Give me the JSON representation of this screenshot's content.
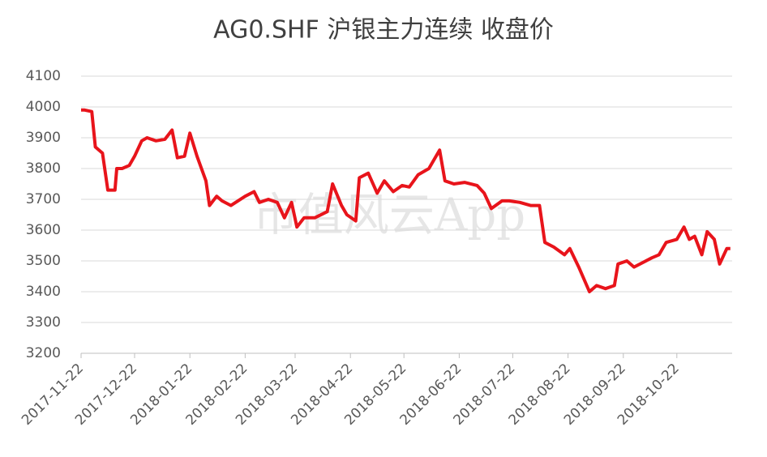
{
  "chart_data": {
    "type": "line",
    "title": "AG0.SHF 沪银主力连续 收盘价",
    "watermark": "市值风云App",
    "x": [
      "2017-11-22",
      "2017-11-24",
      "2017-11-28",
      "2017-11-30",
      "2017-12-04",
      "2017-12-07",
      "2017-12-11",
      "2017-12-12",
      "2017-12-15",
      "2017-12-19",
      "2017-12-22",
      "2017-12-26",
      "2017-12-29",
      "2018-01-03",
      "2018-01-08",
      "2018-01-12",
      "2018-01-15",
      "2018-01-19",
      "2018-01-22",
      "2018-01-26",
      "2018-01-31",
      "2018-02-02",
      "2018-02-06",
      "2018-02-09",
      "2018-02-14",
      "2018-02-22",
      "2018-02-27",
      "2018-03-02",
      "2018-03-07",
      "2018-03-12",
      "2018-03-16",
      "2018-03-20",
      "2018-03-23",
      "2018-03-27",
      "2018-04-02",
      "2018-04-09",
      "2018-04-12",
      "2018-04-17",
      "2018-04-20",
      "2018-04-25",
      "2018-04-27",
      "2018-05-02",
      "2018-05-07",
      "2018-05-11",
      "2018-05-16",
      "2018-05-21",
      "2018-05-25",
      "2018-05-30",
      "2018-06-05",
      "2018-06-11",
      "2018-06-14",
      "2018-06-19",
      "2018-06-25",
      "2018-07-02",
      "2018-07-06",
      "2018-07-10",
      "2018-07-16",
      "2018-07-20",
      "2018-07-26",
      "2018-08-01",
      "2018-08-06",
      "2018-08-09",
      "2018-08-14",
      "2018-08-20",
      "2018-08-23",
      "2018-08-28",
      "2018-09-03",
      "2018-09-07",
      "2018-09-12",
      "2018-09-17",
      "2018-09-19",
      "2018-09-24",
      "2018-09-28",
      "2018-10-08",
      "2018-10-12",
      "2018-10-16",
      "2018-10-22",
      "2018-10-26",
      "2018-10-29",
      "2018-11-01",
      "2018-11-05",
      "2018-11-08",
      "2018-11-12",
      "2018-11-15",
      "2018-11-19",
      "2018-11-21"
    ],
    "series": [
      {
        "color": "#e8141b",
        "values": [
          3990,
          3990,
          3985,
          3870,
          3850,
          3730,
          3730,
          3800,
          3800,
          3810,
          3840,
          3890,
          3900,
          3890,
          3895,
          3925,
          3835,
          3840,
          3915,
          3840,
          3760,
          3680,
          3710,
          3695,
          3680,
          3710,
          3725,
          3690,
          3700,
          3690,
          3640,
          3690,
          3610,
          3640,
          3640,
          3660,
          3750,
          3680,
          3650,
          3630,
          3770,
          3785,
          3720,
          3760,
          3725,
          3745,
          3740,
          3780,
          3800,
          3860,
          3760,
          3750,
          3755,
          3745,
          3720,
          3670,
          3695,
          3695,
          3690,
          3680,
          3680,
          3560,
          3545,
          3520,
          3540,
          3480,
          3400,
          3420,
          3410,
          3420,
          3490,
          3500,
          3480,
          3510,
          3520,
          3560,
          3570,
          3610,
          3570,
          3580,
          3520,
          3595,
          3570,
          3490,
          3540,
          3540
        ]
      }
    ],
    "xlim": [
      "2017-11-22",
      "2018-11-22"
    ],
    "xticks": [
      "2017-11-22",
      "2017-12-22",
      "2018-01-22",
      "2018-02-22",
      "2018-03-22",
      "2018-04-22",
      "2018-05-22",
      "2018-06-22",
      "2018-07-22",
      "2018-08-22",
      "2018-09-22",
      "2018-10-22"
    ],
    "ylim": [
      3200,
      4100
    ],
    "yticks": [
      3200,
      3300,
      3400,
      3500,
      3600,
      3700,
      3800,
      3900,
      4000,
      4100
    ],
    "grid": true
  }
}
